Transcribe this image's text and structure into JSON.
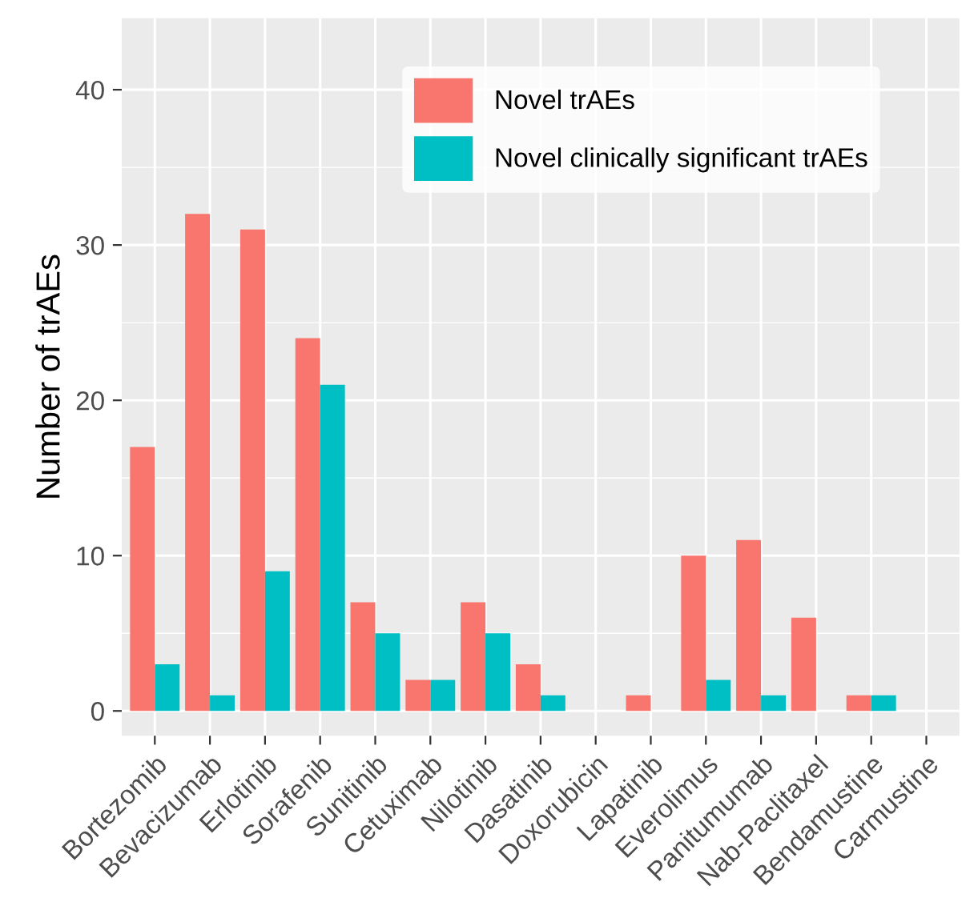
{
  "chart_data": {
    "type": "bar",
    "ylabel": "Number of trAEs",
    "categories": [
      "Bortezomib",
      "Bevacizumab",
      "Erlotinib",
      "Sorafenib",
      "Sunitinib",
      "Cetuximab",
      "Nilotinib",
      "Dasatinib",
      "Doxorubicin",
      "Lapatinib",
      "Everolimus",
      "Panitumumab",
      "Nab-Paclitaxel",
      "Bendamustine",
      "Carmustine"
    ],
    "series": [
      {
        "name": "Novel trAEs",
        "color": "#f8766d",
        "values": [
          17,
          32,
          31,
          24,
          7,
          2,
          7,
          3,
          0,
          1,
          10,
          11,
          6,
          1,
          0
        ]
      },
      {
        "name": "Novel clinically significant trAEs",
        "color": "#00bfc4",
        "values": [
          3,
          1,
          9,
          21,
          5,
          2,
          5,
          1,
          0,
          0,
          2,
          1,
          0,
          1,
          0
        ]
      }
    ],
    "ylim": [
      -1.6,
      44.6
    ],
    "yticks": [
      0,
      10,
      20,
      30,
      40
    ],
    "grid": true,
    "legend": "top"
  }
}
